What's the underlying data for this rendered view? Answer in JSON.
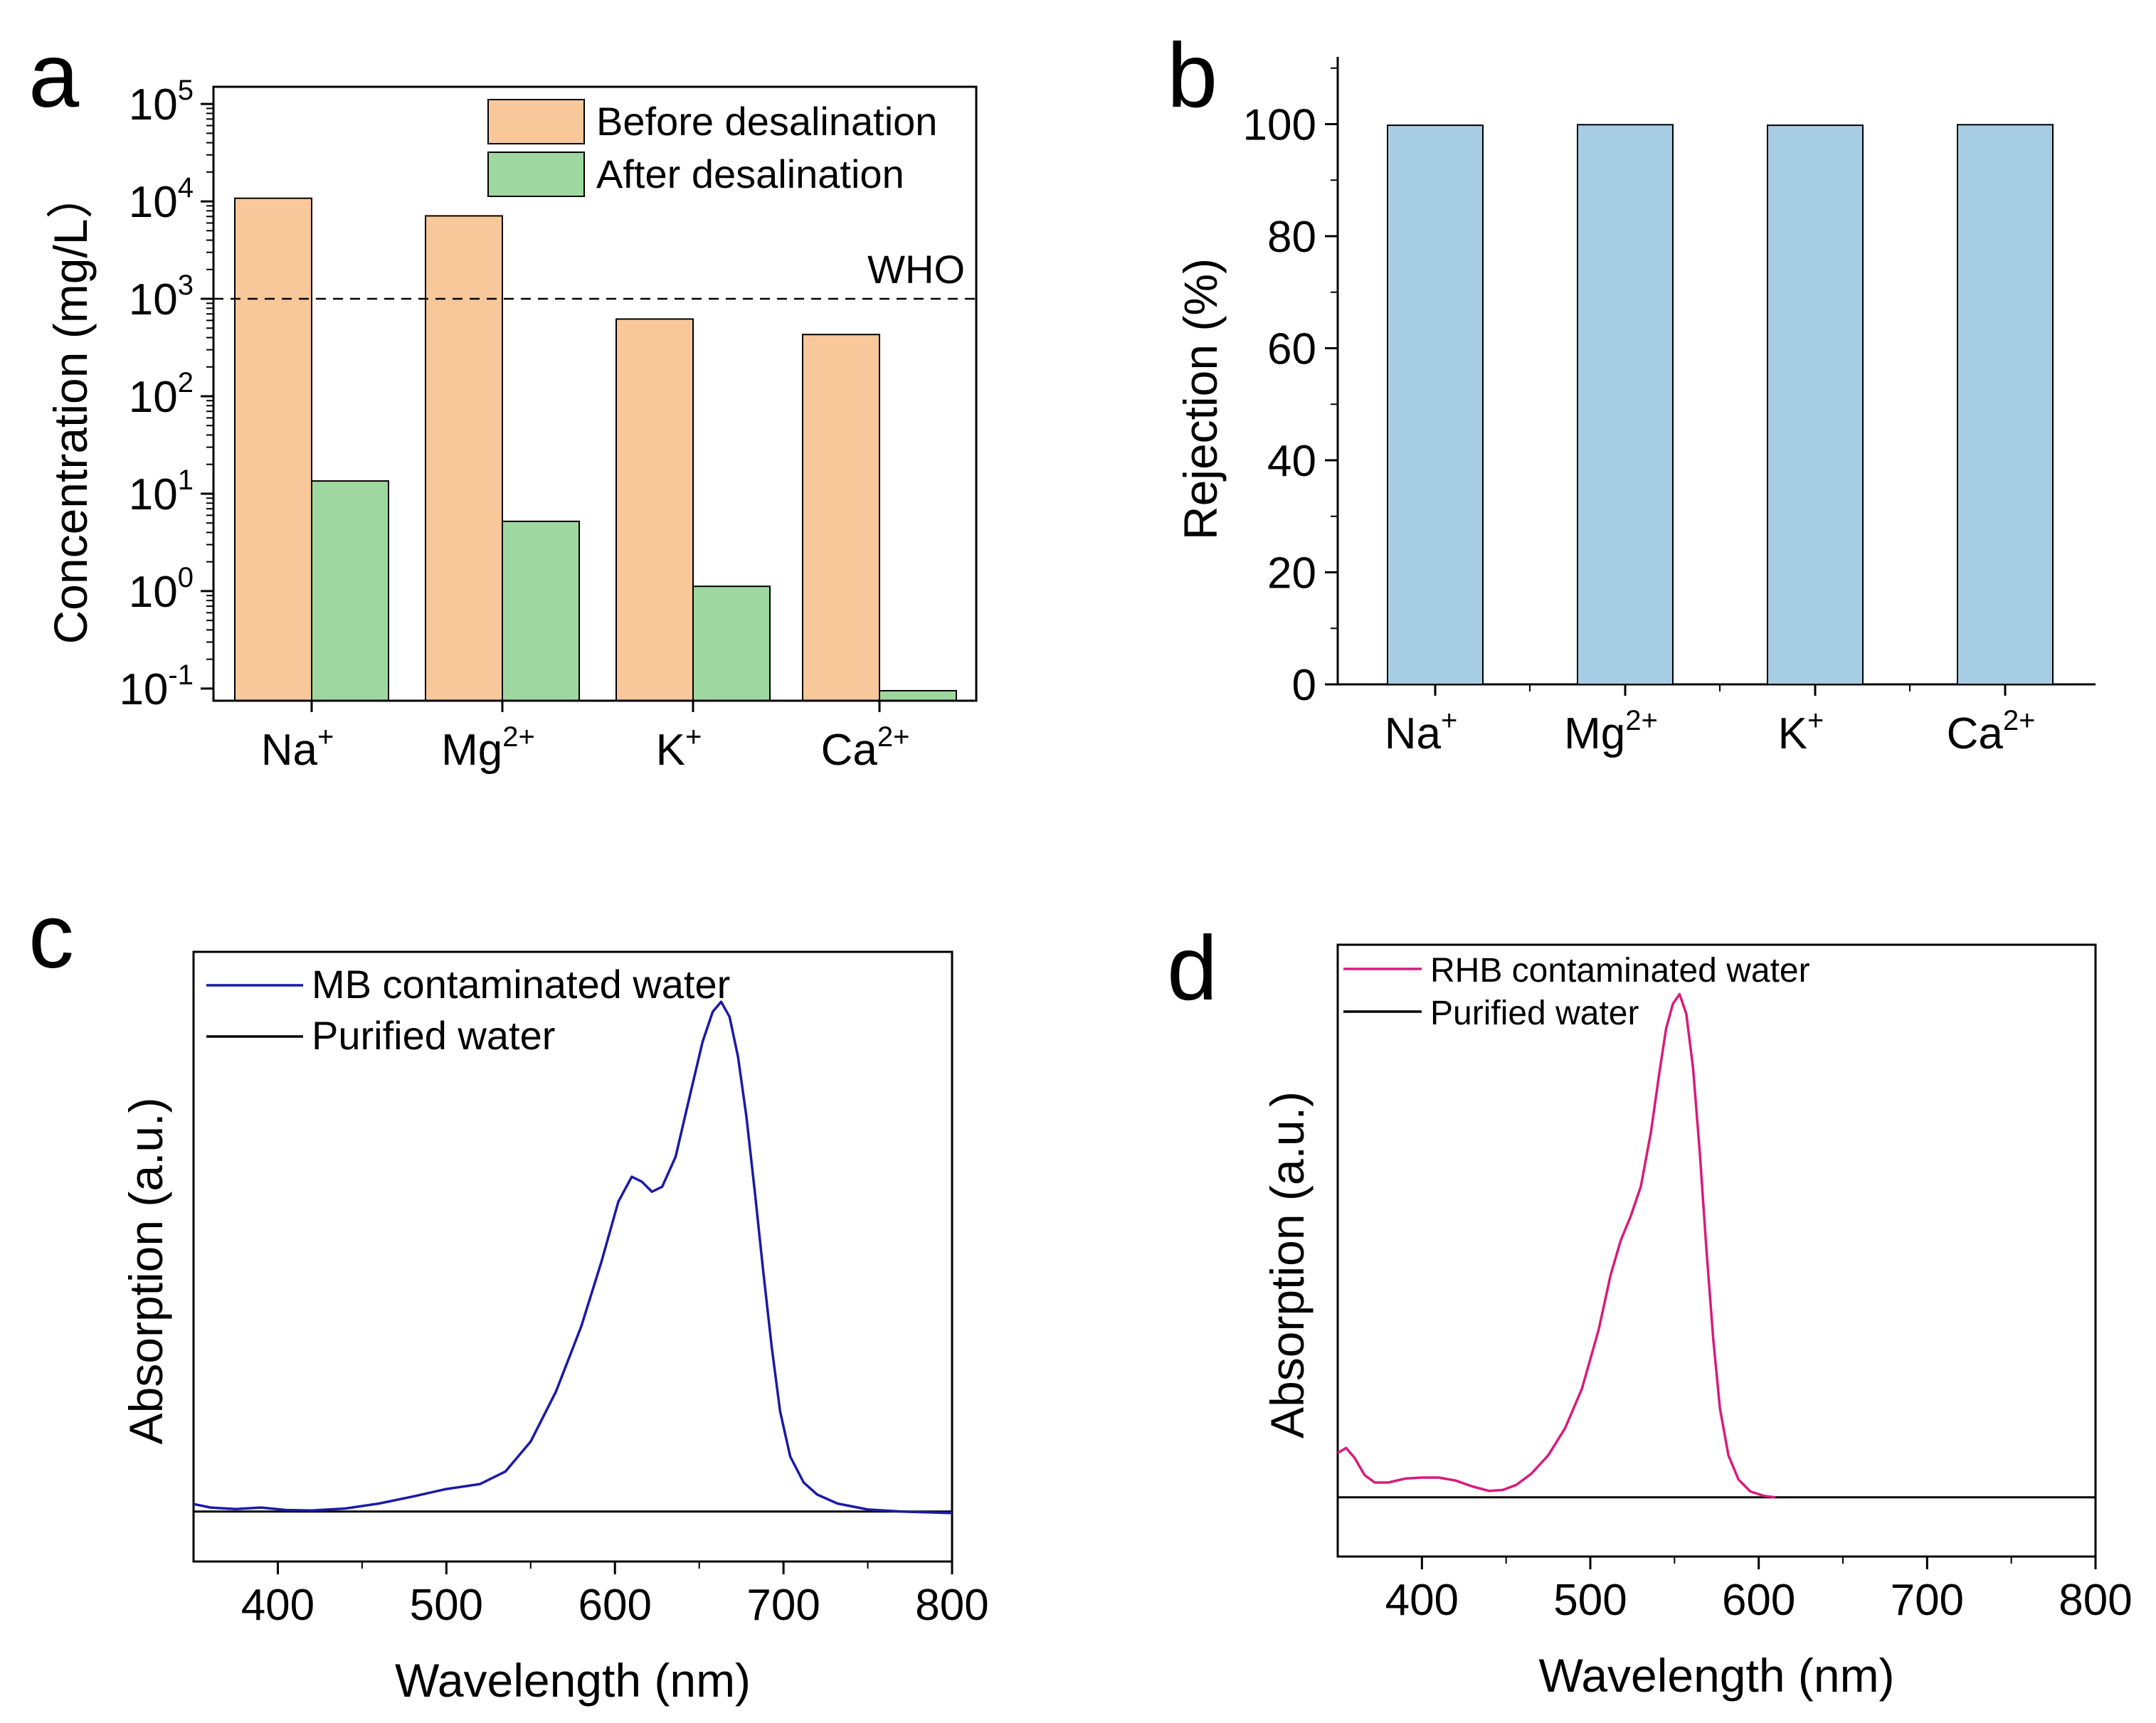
{
  "figure": {
    "panels": [
      "a",
      "b",
      "c",
      "d"
    ]
  },
  "chart_data": [
    {
      "panel": "a",
      "type": "bar",
      "categories": [
        "Na+",
        "Mg2+",
        "K+",
        "Ca2+"
      ],
      "category_labels": [
        {
          "base": "Na",
          "sup": "+"
        },
        {
          "base": "Mg",
          "sup": "2+"
        },
        {
          "base": "K",
          "sup": "+"
        },
        {
          "base": "Ca",
          "sup": "2+"
        }
      ],
      "series": [
        {
          "name": "Before desalination",
          "values": [
            10770,
            7100,
            620,
            430
          ],
          "color": "#F8C89A"
        },
        {
          "name": "After desalination",
          "values": [
            13.5,
            5.2,
            1.12,
            0.095
          ],
          "color": "#9ED8A0"
        }
      ],
      "yscale": "log",
      "ylim": [
        0.075,
        150000
      ],
      "yticks": [
        {
          "value": 0.1,
          "base": "10",
          "exp": "-1"
        },
        {
          "value": 1,
          "base": "10",
          "exp": "0"
        },
        {
          "value": 10,
          "base": "10",
          "exp": "1"
        },
        {
          "value": 100,
          "base": "10",
          "exp": "2"
        },
        {
          "value": 1000,
          "base": "10",
          "exp": "3"
        },
        {
          "value": 10000,
          "base": "10",
          "exp": "4"
        },
        {
          "value": 100000,
          "base": "10",
          "exp": "5"
        }
      ],
      "ylabel": "Concentration (mg/L）",
      "xlabel": "",
      "reference_line": {
        "value": 1000,
        "label": "WHO"
      },
      "legend_position": "top-right"
    },
    {
      "panel": "b",
      "type": "bar",
      "categories": [
        "Na+",
        "Mg2+",
        "K+",
        "Ca2+"
      ],
      "category_labels": [
        {
          "base": "Na",
          "sup": "+"
        },
        {
          "base": "Mg",
          "sup": "2+"
        },
        {
          "base": "K",
          "sup": "+"
        },
        {
          "base": "Ca",
          "sup": "2+"
        }
      ],
      "values": [
        99.8,
        99.9,
        99.8,
        99.9
      ],
      "color": "#A6CDE3",
      "ylim": [
        0,
        112
      ],
      "yticks": [
        0,
        20,
        40,
        60,
        80,
        100
      ],
      "ylabel": "Rejection (%)",
      "xlabel": ""
    },
    {
      "panel": "c",
      "type": "line",
      "xlim": [
        350,
        800
      ],
      "xticks": [
        400,
        500,
        600,
        700,
        800
      ],
      "ylim": [
        -0.1,
        1.12
      ],
      "xlabel": "Wavelength (nm)",
      "ylabel": "Absorption (a.u.)",
      "legend_position": "top-left",
      "series": [
        {
          "name": "MB contaminated water",
          "color": "#1A1AA6",
          "x": [
            350,
            360,
            375,
            390,
            405,
            420,
            440,
            460,
            480,
            500,
            520,
            535,
            550,
            565,
            580,
            592,
            602,
            610,
            616,
            622,
            628,
            636,
            645,
            652,
            658,
            663,
            668,
            673,
            678,
            683,
            688,
            693,
            698,
            704,
            712,
            720,
            732,
            750,
            770,
            800
          ],
          "y": [
            0.015,
            0.008,
            0.005,
            0.008,
            0.003,
            0.002,
            0.006,
            0.016,
            0.03,
            0.045,
            0.055,
            0.08,
            0.14,
            0.24,
            0.37,
            0.5,
            0.62,
            0.67,
            0.66,
            0.64,
            0.65,
            0.71,
            0.84,
            0.94,
            1.0,
            1.02,
            0.99,
            0.91,
            0.79,
            0.64,
            0.48,
            0.33,
            0.2,
            0.11,
            0.058,
            0.034,
            0.016,
            0.004,
            0.0,
            -0.003
          ]
        },
        {
          "name": "Purified water",
          "color": "#000000",
          "x": [
            350,
            800
          ],
          "y": [
            0,
            0
          ]
        }
      ]
    },
    {
      "panel": "d",
      "type": "line",
      "xlim": [
        350,
        800
      ],
      "xticks": [
        400,
        500,
        600,
        700,
        800
      ],
      "ylim": [
        -0.12,
        1.12
      ],
      "xlabel": "Wavelength (nm)",
      "ylabel": "Absorption (a.u.)",
      "legend_position": "top-left",
      "series": [
        {
          "name": "RHB contaminated water",
          "color": "#D81B7C",
          "x": [
            350,
            355,
            360,
            366,
            372,
            380,
            390,
            400,
            410,
            420,
            430,
            440,
            448,
            456,
            465,
            475,
            485,
            495,
            505,
            512,
            518,
            524,
            530,
            536,
            541,
            545,
            549,
            553,
            557,
            561,
            565,
            569,
            573,
            577,
            582,
            588,
            595,
            603,
            610
          ],
          "y": [
            0.09,
            0.1,
            0.08,
            0.045,
            0.03,
            0.03,
            0.038,
            0.04,
            0.04,
            0.034,
            0.022,
            0.013,
            0.015,
            0.025,
            0.048,
            0.085,
            0.14,
            0.22,
            0.34,
            0.45,
            0.52,
            0.57,
            0.63,
            0.74,
            0.86,
            0.95,
            1.0,
            1.02,
            0.98,
            0.87,
            0.7,
            0.5,
            0.32,
            0.18,
            0.085,
            0.036,
            0.012,
            0.003,
            0.0
          ]
        },
        {
          "name": "Purified water",
          "color": "#000000",
          "x": [
            350,
            800
          ],
          "y": [
            0,
            0
          ]
        }
      ]
    }
  ]
}
